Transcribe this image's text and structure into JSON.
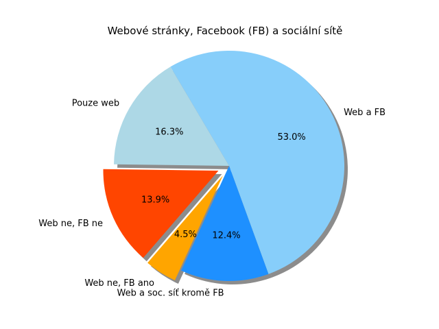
{
  "chart_data": {
    "type": "pie",
    "title": "Webové stránky, Facebook (FB) a sociální sítě",
    "slices": [
      {
        "label": "Web a FB",
        "value": 53.0,
        "pct_label": "53.0%",
        "color": "#87CEFA",
        "exploded": false
      },
      {
        "label": "Pouze web",
        "value": 16.3,
        "pct_label": "16.3%",
        "color": "#ADD8E6",
        "exploded": false
      },
      {
        "label": "Web ne, FB ne",
        "value": 13.9,
        "pct_label": "13.9%",
        "color": "#FF4500",
        "exploded": true
      },
      {
        "label": "Web ne, FB ano",
        "value": 4.5,
        "pct_label": "4.5%",
        "color": "#FFA500",
        "exploded": true
      },
      {
        "label": "Web a soc. síť kromě FB",
        "value": 12.4,
        "pct_label": "12.4%",
        "color": "#1E90FF",
        "exploded": false
      }
    ],
    "start_angle_deg": -70,
    "direction": "counterclockwise",
    "shadow": true,
    "legend": "none"
  }
}
